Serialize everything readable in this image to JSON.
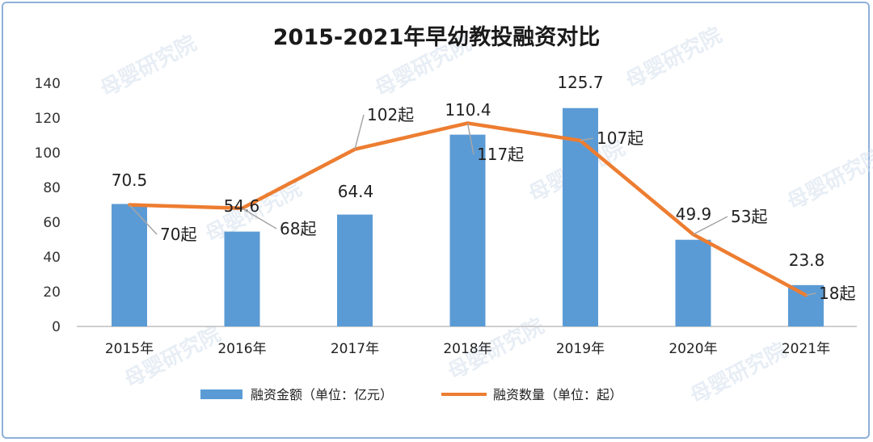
{
  "chart_data": {
    "type": "bar+line",
    "title": "2015-2021年早幼教投融资对比",
    "categories": [
      "2015年",
      "2016年",
      "2017年",
      "2018年",
      "2019年",
      "2020年",
      "2021年"
    ],
    "series": [
      {
        "name": "融资金额（单位：亿元）",
        "type": "bar",
        "values": [
          70.5,
          54.6,
          64.4,
          110.4,
          125.7,
          49.9,
          23.8
        ],
        "labels": [
          "70.5",
          "54.6",
          "64.4",
          "110.4",
          "125.7",
          "49.9",
          "23.8"
        ],
        "color": "#5b9bd5"
      },
      {
        "name": "融资数量（单位：起）",
        "type": "line",
        "values": [
          70,
          68,
          102,
          117,
          107,
          53,
          18
        ],
        "labels": [
          "70起",
          "68起",
          "102起",
          "117起",
          "107起",
          "53起",
          "18起"
        ],
        "color": "#ed7d31"
      }
    ],
    "ylim": [
      0,
      140
    ],
    "yticks": [
      "0",
      "20",
      "40",
      "60",
      "80",
      "100",
      "120",
      "140"
    ],
    "grid": false,
    "legend_position": "bottom"
  },
  "watermark": "母婴研究院"
}
